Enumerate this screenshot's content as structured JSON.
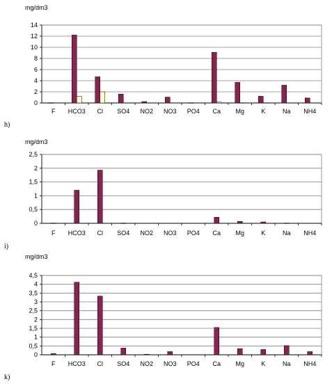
{
  "chart_data": [
    {
      "type": "bar",
      "panel_label": "h)",
      "unit": "mg/dm3",
      "categories": [
        "F",
        "HCO3",
        "Cl",
        "SO4",
        "NO2",
        "NO3",
        "PO4",
        "Ca",
        "Mg",
        "K",
        "Na",
        "NH4"
      ],
      "ylim": [
        0,
        14
      ],
      "yticks": [
        "0",
        "2",
        "4",
        "6",
        "8",
        "10",
        "12",
        "14"
      ],
      "grid": true,
      "legend": "none",
      "colors": [
        "#8b2252",
        "#ffffcc"
      ],
      "series": [
        {
          "values": [
            0.05,
            12.2,
            4.7,
            1.6,
            0.25,
            1.05,
            0.05,
            9.1,
            3.7,
            1.2,
            3.2,
            0.9
          ]
        },
        {
          "values": [
            0.0,
            1.2,
            2.0,
            0.0,
            0.0,
            0.0,
            0.0,
            0.15,
            0.05,
            0.05,
            0.0,
            0.0
          ]
        }
      ]
    },
    {
      "type": "bar",
      "panel_label": "i)",
      "unit": "mg/dm3",
      "categories": [
        "F",
        "HCO3",
        "Cl",
        "SO4",
        "NO2",
        "NO3",
        "PO4",
        "Ca",
        "Mg",
        "K",
        "Na",
        "NH4"
      ],
      "ylim": [
        0,
        2.5
      ],
      "yticks": [
        "0",
        "0,5",
        "1",
        "1,5",
        "2",
        "2,5"
      ],
      "grid": true,
      "legend": "none",
      "colors": [
        "#8b2252"
      ],
      "series": [
        {
          "values": [
            0.01,
            1.2,
            1.93,
            0.01,
            0.0,
            0.0,
            0.0,
            0.22,
            0.07,
            0.05,
            0.01,
            0.0
          ]
        }
      ]
    },
    {
      "type": "bar",
      "panel_label": "k)",
      "unit": "mg/dm3",
      "categories": [
        "F",
        "HCO3",
        "Cl",
        "SO4",
        "NO2",
        "NO3",
        "PO4",
        "Ca",
        "Mg",
        "K",
        "Na",
        "NH4"
      ],
      "ylim": [
        0,
        4.5
      ],
      "yticks": [
        "0",
        "0,5",
        "1",
        "1,5",
        "2",
        "2,5",
        "3",
        "3,5",
        "4",
        "4,5"
      ],
      "grid": true,
      "legend": "none",
      "colors": [
        "#8b2252"
      ],
      "series": [
        {
          "values": [
            0.07,
            4.12,
            3.33,
            0.38,
            0.03,
            0.18,
            0.0,
            1.55,
            0.35,
            0.3,
            0.52,
            0.18
          ]
        }
      ]
    }
  ]
}
